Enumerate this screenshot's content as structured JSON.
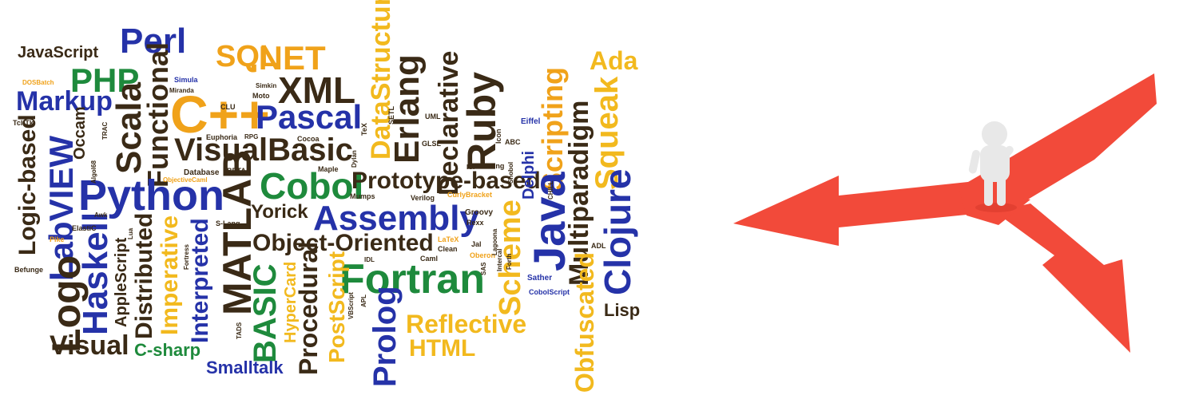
{
  "colors": {
    "black": "#3a2a16",
    "blue": "#2532a8",
    "green": "#1e8a3c",
    "orange": "#f0a21a",
    "yellow": "#f2b91e",
    "arrow": "#f24a3a",
    "figure": "#e8e8e8"
  },
  "words": [
    {
      "id": "javascript",
      "text": "JavaScript",
      "color": "black"
    },
    {
      "id": "perl",
      "text": "Perl",
      "color": "blue"
    },
    {
      "id": "php",
      "text": "PHP",
      "color": "green"
    },
    {
      "id": "sql",
      "text": "SQL",
      "color": "orange"
    },
    {
      "id": "net",
      "text": ".NET",
      "color": "orange"
    },
    {
      "id": "xml",
      "text": "XML",
      "color": "black"
    },
    {
      "id": "ada",
      "text": "Ada",
      "color": "yellow"
    },
    {
      "id": "datastructures",
      "text": "DataStructures",
      "color": "yellow"
    },
    {
      "id": "declarative",
      "text": "Declarative",
      "color": "black"
    },
    {
      "id": "erlang",
      "text": "Erlang",
      "color": "black"
    },
    {
      "id": "markup",
      "text": "Markup",
      "color": "blue"
    },
    {
      "id": "cpp",
      "text": "C++",
      "color": "orange"
    },
    {
      "id": "pascal",
      "text": "Pascal",
      "color": "blue"
    },
    {
      "id": "ruby",
      "text": "Ruby",
      "color": "black"
    },
    {
      "id": "scripting",
      "text": "Scripting",
      "color": "orange"
    },
    {
      "id": "squeak",
      "text": "Squeak",
      "color": "yellow"
    },
    {
      "id": "multiparadigm",
      "text": "Multiparadigm",
      "color": "black"
    },
    {
      "id": "visualbasic",
      "text": "VisualBasic",
      "color": "black"
    },
    {
      "id": "functional",
      "text": "Functional",
      "color": "black"
    },
    {
      "id": "scala",
      "text": "Scala",
      "color": "black"
    },
    {
      "id": "python",
      "text": "Python",
      "color": "blue"
    },
    {
      "id": "cobol",
      "text": "Cobol",
      "color": "green"
    },
    {
      "id": "prototype",
      "text": "Prototype-based",
      "color": "black"
    },
    {
      "id": "labview",
      "text": "LabVIEW",
      "color": "blue"
    },
    {
      "id": "logic",
      "text": "Logic-based",
      "color": "black"
    },
    {
      "id": "matlab",
      "text": "MATLAB",
      "color": "black"
    },
    {
      "id": "yorick",
      "text": "Yorick",
      "color": "black"
    },
    {
      "id": "assembly",
      "text": "Assembly",
      "color": "blue"
    },
    {
      "id": "java",
      "text": "Java",
      "color": "blue"
    },
    {
      "id": "clojure",
      "text": "Clojure",
      "color": "blue"
    },
    {
      "id": "oop",
      "text": "Object-Oriented",
      "color": "black"
    },
    {
      "id": "haskell",
      "text": "Haskell",
      "color": "blue"
    },
    {
      "id": "logo",
      "text": "Logo",
      "color": "black"
    },
    {
      "id": "fortran",
      "text": "Fortran",
      "color": "green"
    },
    {
      "id": "basic",
      "text": "BASIC",
      "color": "green"
    },
    {
      "id": "scheme",
      "text": "Scheme",
      "color": "yellow"
    },
    {
      "id": "imperative",
      "text": "Imperative",
      "color": "yellow"
    },
    {
      "id": "distributed",
      "text": "Distributed",
      "color": "black"
    },
    {
      "id": "interpreted",
      "text": "Interpreted",
      "color": "blue"
    },
    {
      "id": "procedural",
      "text": "Procedural",
      "color": "black"
    },
    {
      "id": "postscript",
      "text": "PostScript",
      "color": "yellow"
    },
    {
      "id": "prolog",
      "text": "Prolog",
      "color": "blue"
    },
    {
      "id": "reflective",
      "text": "Reflective",
      "color": "yellow"
    },
    {
      "id": "html",
      "text": "HTML",
      "color": "yellow"
    },
    {
      "id": "obfuscated",
      "text": "Obfuscated",
      "color": "yellow"
    },
    {
      "id": "lisp",
      "text": "Lisp",
      "color": "black"
    },
    {
      "id": "visual",
      "text": "Visual",
      "color": "black"
    },
    {
      "id": "csharp",
      "text": "C-sharp",
      "color": "green"
    },
    {
      "id": "smalltalk",
      "text": "Smalltalk",
      "color": "blue"
    },
    {
      "id": "hypercard",
      "text": "HyperCard",
      "color": "yellow"
    },
    {
      "id": "applescript",
      "text": "AppleScript",
      "color": "black"
    },
    {
      "id": "occam",
      "text": "Occam",
      "color": "black"
    },
    {
      "id": "delphi",
      "text": "Delphi",
      "color": "blue"
    },
    {
      "id": "simula",
      "text": "Simula",
      "color": "blue"
    },
    {
      "id": "database",
      "text": "Database",
      "color": "black"
    },
    {
      "id": "euphoria",
      "text": "Euphoria",
      "color": "black"
    },
    {
      "id": "cocoa",
      "text": "Cocoa",
      "color": "black"
    },
    {
      "id": "eiffel",
      "text": "Eiffel",
      "color": "blue"
    },
    {
      "id": "dosbatch",
      "text": "DOSBatch",
      "color": "orange"
    },
    {
      "id": "tcltk",
      "text": "Tcl-Tk",
      "color": "black"
    },
    {
      "id": "groovy",
      "text": "Groovy",
      "color": "black"
    },
    {
      "id": "rexx",
      "text": "Rexx",
      "color": "black"
    },
    {
      "id": "curlybracket",
      "text": "CurlyBracket",
      "color": "orange"
    },
    {
      "id": "mumps",
      "text": "Mumps",
      "color": "black"
    },
    {
      "id": "verilog",
      "text": "Verilog",
      "color": "black"
    },
    {
      "id": "slang",
      "text": "S-Lang",
      "color": "black"
    },
    {
      "id": "elastic",
      "text": "ElastiC",
      "color": "black"
    },
    {
      "id": "pike",
      "text": "Pike",
      "color": "orange"
    },
    {
      "id": "befunge",
      "text": "Befunge",
      "color": "black"
    },
    {
      "id": "latex",
      "text": "LaTeX",
      "color": "orange"
    },
    {
      "id": "clean",
      "text": "Clean",
      "color": "black"
    },
    {
      "id": "caml",
      "text": "Caml",
      "color": "black"
    },
    {
      "id": "oberon",
      "text": "Oberon",
      "color": "orange"
    },
    {
      "id": "jal",
      "text": "Jal",
      "color": "black"
    },
    {
      "id": "sather",
      "text": "Sather",
      "color": "blue"
    },
    {
      "id": "cobolscript",
      "text": "CobolScript",
      "color": "blue"
    },
    {
      "id": "turing",
      "text": "Turing",
      "color": "black"
    },
    {
      "id": "icon",
      "text": "Icon",
      "color": "black"
    },
    {
      "id": "tex",
      "text": "TeX",
      "color": "black"
    },
    {
      "id": "uml",
      "text": "UML",
      "color": "black"
    },
    {
      "id": "setl",
      "text": "SETL",
      "color": "black"
    },
    {
      "id": "glsl",
      "text": "GLSL",
      "color": "black"
    },
    {
      "id": "abc",
      "text": "ABC",
      "color": "black"
    },
    {
      "id": "clu",
      "text": "CLU",
      "color": "black"
    },
    {
      "id": "moto",
      "text": "Moto",
      "color": "black"
    },
    {
      "id": "simkin",
      "text": "Simkin",
      "color": "black"
    },
    {
      "id": "miranda",
      "text": "Miranda",
      "color": "black"
    },
    {
      "id": "beta",
      "text": "BETA",
      "color": "black"
    },
    {
      "id": "maple",
      "text": "Maple",
      "color": "black"
    },
    {
      "id": "rpg",
      "text": "RPG",
      "color": "black"
    },
    {
      "id": "awk",
      "text": "Awk",
      "color": "black"
    },
    {
      "id": "trac",
      "text": "TRAC",
      "color": "black"
    },
    {
      "id": "dylan",
      "text": "Dylan",
      "color": "black"
    },
    {
      "id": "ici",
      "text": "ICI",
      "color": "black"
    },
    {
      "id": "lua",
      "text": "Lua",
      "color": "black"
    },
    {
      "id": "tads",
      "text": "TADS",
      "color": "black"
    },
    {
      "id": "sas",
      "text": "SAS",
      "color": "black"
    },
    {
      "id": "apl",
      "text": "APL",
      "color": "black"
    },
    {
      "id": "vbscript",
      "text": "VBScript",
      "color": "black"
    },
    {
      "id": "idl",
      "text": "IDL",
      "color": "black"
    },
    {
      "id": "forth",
      "text": "Forth",
      "color": "black"
    },
    {
      "id": "lagoona",
      "text": "Lagoona",
      "color": "black"
    },
    {
      "id": "fortress",
      "text": "Fortress",
      "color": "black"
    },
    {
      "id": "algo68",
      "text": "Algol68",
      "color": "black"
    },
    {
      "id": "objectivecaml",
      "text": "ObjectiveCaml",
      "color": "orange"
    },
    {
      "id": "intercal",
      "text": "Intercal",
      "color": "black"
    },
    {
      "id": "snobol",
      "text": "Snobol",
      "color": "black"
    },
    {
      "id": "adl",
      "text": "ADL",
      "color": "black"
    },
    {
      "id": "chill",
      "text": "CHILL",
      "color": "black"
    }
  ]
}
